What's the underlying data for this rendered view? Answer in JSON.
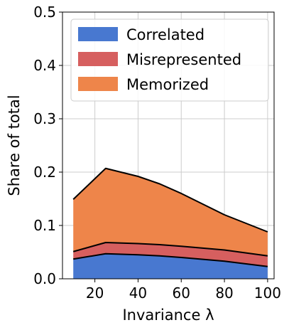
{
  "chart_data": {
    "type": "area",
    "stacked": true,
    "xlabel": "Invariance λ",
    "ylabel": "Share of total",
    "xlim": [
      5,
      103
    ],
    "ylim": [
      0.0,
      0.5
    ],
    "xticks": [
      20,
      40,
      60,
      80,
      100
    ],
    "yticks": [
      0.0,
      0.1,
      0.2,
      0.3,
      0.4,
      0.5
    ],
    "grid": true,
    "legend_position": "top-right",
    "x": [
      10,
      25,
      40,
      50,
      60,
      80,
      100
    ],
    "series": [
      {
        "name": "Correlated",
        "color": "#4878d0",
        "values": [
          0.037,
          0.047,
          0.045,
          0.043,
          0.04,
          0.033,
          0.023
        ]
      },
      {
        "name": "Misrepresented",
        "color": "#d65f5f",
        "values": [
          0.014,
          0.021,
          0.021,
          0.021,
          0.021,
          0.021,
          0.02
        ]
      },
      {
        "name": "Memorized",
        "color": "#ee854a",
        "values": [
          0.098,
          0.139,
          0.126,
          0.114,
          0.099,
          0.066,
          0.045
        ]
      }
    ]
  }
}
